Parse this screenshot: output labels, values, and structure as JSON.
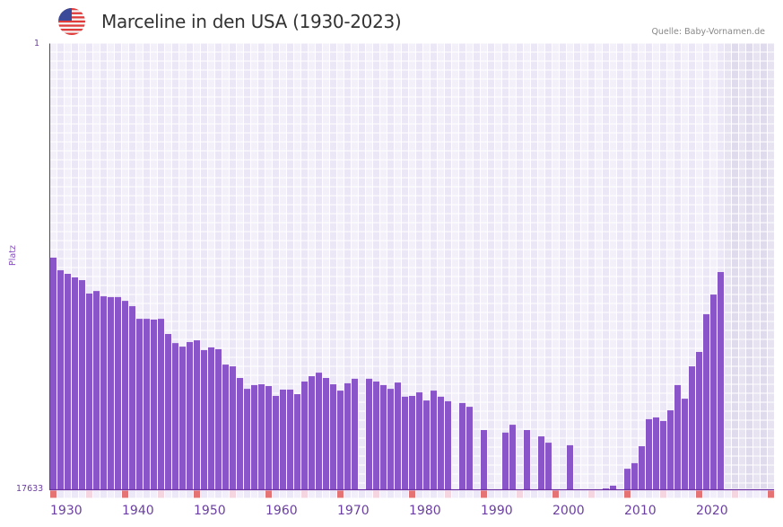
{
  "header": {
    "title": "Marceline in den USA (1930-2023)",
    "source": "Quelle: Baby-Vornamen.de",
    "flag_icon": "us-flag-icon"
  },
  "colors": {
    "bar": "#8a55c8",
    "axis": "#6a2fa0",
    "grid_light": "#f3f0fa",
    "grid_dark": "#ece7f7",
    "future_light": "#e7e3f0",
    "future_dark": "#e0dbec",
    "decade_marker": "#e57373",
    "half_decade_marker": "#f5d5e0"
  },
  "chart_data": {
    "type": "bar",
    "title": "Marceline in den USA (1930-2023)",
    "xlabel": "",
    "ylabel": "Platz",
    "y_inverted": true,
    "ylim": [
      1,
      17633
    ],
    "xlim": [
      1930,
      2030
    ],
    "y_tick_labels": [
      "1",
      "17633"
    ],
    "x_tick_labels": [
      "1930",
      "1940",
      "1950",
      "1960",
      "1970",
      "1980",
      "1990",
      "2000",
      "2010",
      "2020"
    ],
    "future_region_start": 2024,
    "grid": true,
    "categories": [
      1930,
      1931,
      1932,
      1933,
      1934,
      1935,
      1936,
      1937,
      1938,
      1939,
      1940,
      1941,
      1942,
      1943,
      1944,
      1945,
      1946,
      1947,
      1948,
      1949,
      1950,
      1951,
      1952,
      1953,
      1954,
      1955,
      1956,
      1957,
      1958,
      1959,
      1960,
      1961,
      1962,
      1963,
      1964,
      1965,
      1966,
      1967,
      1968,
      1969,
      1970,
      1971,
      1972,
      1973,
      1974,
      1975,
      1976,
      1977,
      1978,
      1979,
      1980,
      1981,
      1982,
      1983,
      1984,
      1985,
      1986,
      1987,
      1988,
      1989,
      1990,
      1991,
      1992,
      1993,
      1994,
      1995,
      1996,
      1997,
      1998,
      1999,
      2000,
      2001,
      2002,
      2003,
      2004,
      2005,
      2006,
      2007,
      2008,
      2009,
      2010,
      2011,
      2012,
      2013,
      2014,
      2015,
      2016,
      2017,
      2018,
      2019,
      2020,
      2021,
      2022,
      2023
    ],
    "series": [
      {
        "name": "Platz",
        "values": [
          8470,
          8970,
          9110,
          9250,
          9360,
          9890,
          9790,
          10000,
          10030,
          10030,
          10180,
          10390,
          10890,
          10890,
          10920,
          10890,
          11490,
          11850,
          11990,
          11810,
          11740,
          12130,
          12020,
          12090,
          12700,
          12770,
          13230,
          13660,
          13510,
          13480,
          13550,
          13940,
          13690,
          13690,
          13870,
          13370,
          13160,
          13020,
          13230,
          13480,
          13730,
          13440,
          13260,
          null,
          13260,
          13370,
          13510,
          13660,
          13410,
          13970,
          13940,
          13800,
          14120,
          13730,
          13970,
          14150,
          null,
          14220,
          14370,
          null,
          15290,
          null,
          null,
          15390,
          15080,
          null,
          15290,
          null,
          15540,
          15790,
          null,
          null,
          15890,
          null,
          null,
          null,
          null,
          17600,
          17490,
          null,
          16820,
          16600,
          15930,
          14860,
          14790,
          14930,
          14510,
          13510,
          14050,
          12770,
          12200,
          10710,
          9930,
          9040
        ]
      }
    ]
  }
}
